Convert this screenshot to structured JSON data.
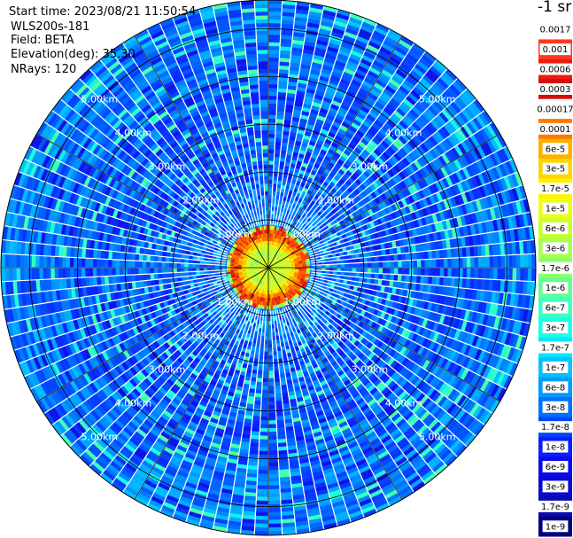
{
  "header": {
    "start_time": "Start time: 2023/08/21 11:50:54",
    "instrument": "WLS200s-181",
    "field": "Field: BETA",
    "elevation": "Elevation(deg): 35.30",
    "nrays": "NRays: 120"
  },
  "colorbar": {
    "unit_label": "-1 sr",
    "labels": [
      "0.0017",
      "0.001",
      "0.0006",
      "0.0003",
      "0.00017",
      "0.0001",
      "6e-5",
      "3e-5",
      "1.7e-5",
      "1e-5",
      "6e-6",
      "3e-6",
      "1.7e-6",
      "1e-6",
      "6e-7",
      "3e-7",
      "1.7e-7",
      "1e-7",
      "6e-8",
      "3e-8",
      "1.7e-8",
      "1e-8",
      "6e-9",
      "3e-9",
      "1.7e-9",
      "1e-9"
    ],
    "colors": [
      "#ffffff",
      "#ff3a1a",
      "#ee1a10",
      "#d40c0c",
      "#ffffff",
      "#ff7a00",
      "#ffb000",
      "#ffd500",
      "#fff200",
      "#ecff12",
      "#c8ff30",
      "#a8ff4e",
      "#8cff6a",
      "#62ff95",
      "#3dffc0",
      "#1affe5",
      "#00e8ff",
      "#00c2ff",
      "#009cff",
      "#0070ff",
      "#0045ff",
      "#0a1eff",
      "#0a0aee",
      "#0a0ad0",
      "#0a0ab0",
      "#00007a"
    ]
  },
  "chart_data": {
    "type": "heatmap",
    "projection": "polar (PPI scan)",
    "field": "BETA",
    "elevation_deg": 35.3,
    "n_rays": 120,
    "range_rings_km": [
      1,
      2,
      3,
      4,
      5
    ],
    "ring_labels": [
      "1.00km",
      "2.00km",
      "3.00km",
      "4.00km",
      "5.00km"
    ],
    "max_range_km": 5.6,
    "color_scale": "log",
    "value_range": [
      1e-09,
      0.0017
    ],
    "radial_profile": [
      {
        "range_km": 0.0,
        "beta": 1.7e-06
      },
      {
        "range_km": 0.4,
        "beta": 1e-06
      },
      {
        "range_km": 0.6,
        "beta": 1.7e-05
      },
      {
        "range_km": 0.75,
        "beta": 0.0001
      },
      {
        "range_km": 0.9,
        "beta": 1.7e-08
      },
      {
        "range_km": 2.0,
        "beta": 1e-08
      },
      {
        "range_km": 3.5,
        "beta": 1e-08
      },
      {
        "range_km": 5.6,
        "beta": 1.7e-08
      }
    ]
  }
}
